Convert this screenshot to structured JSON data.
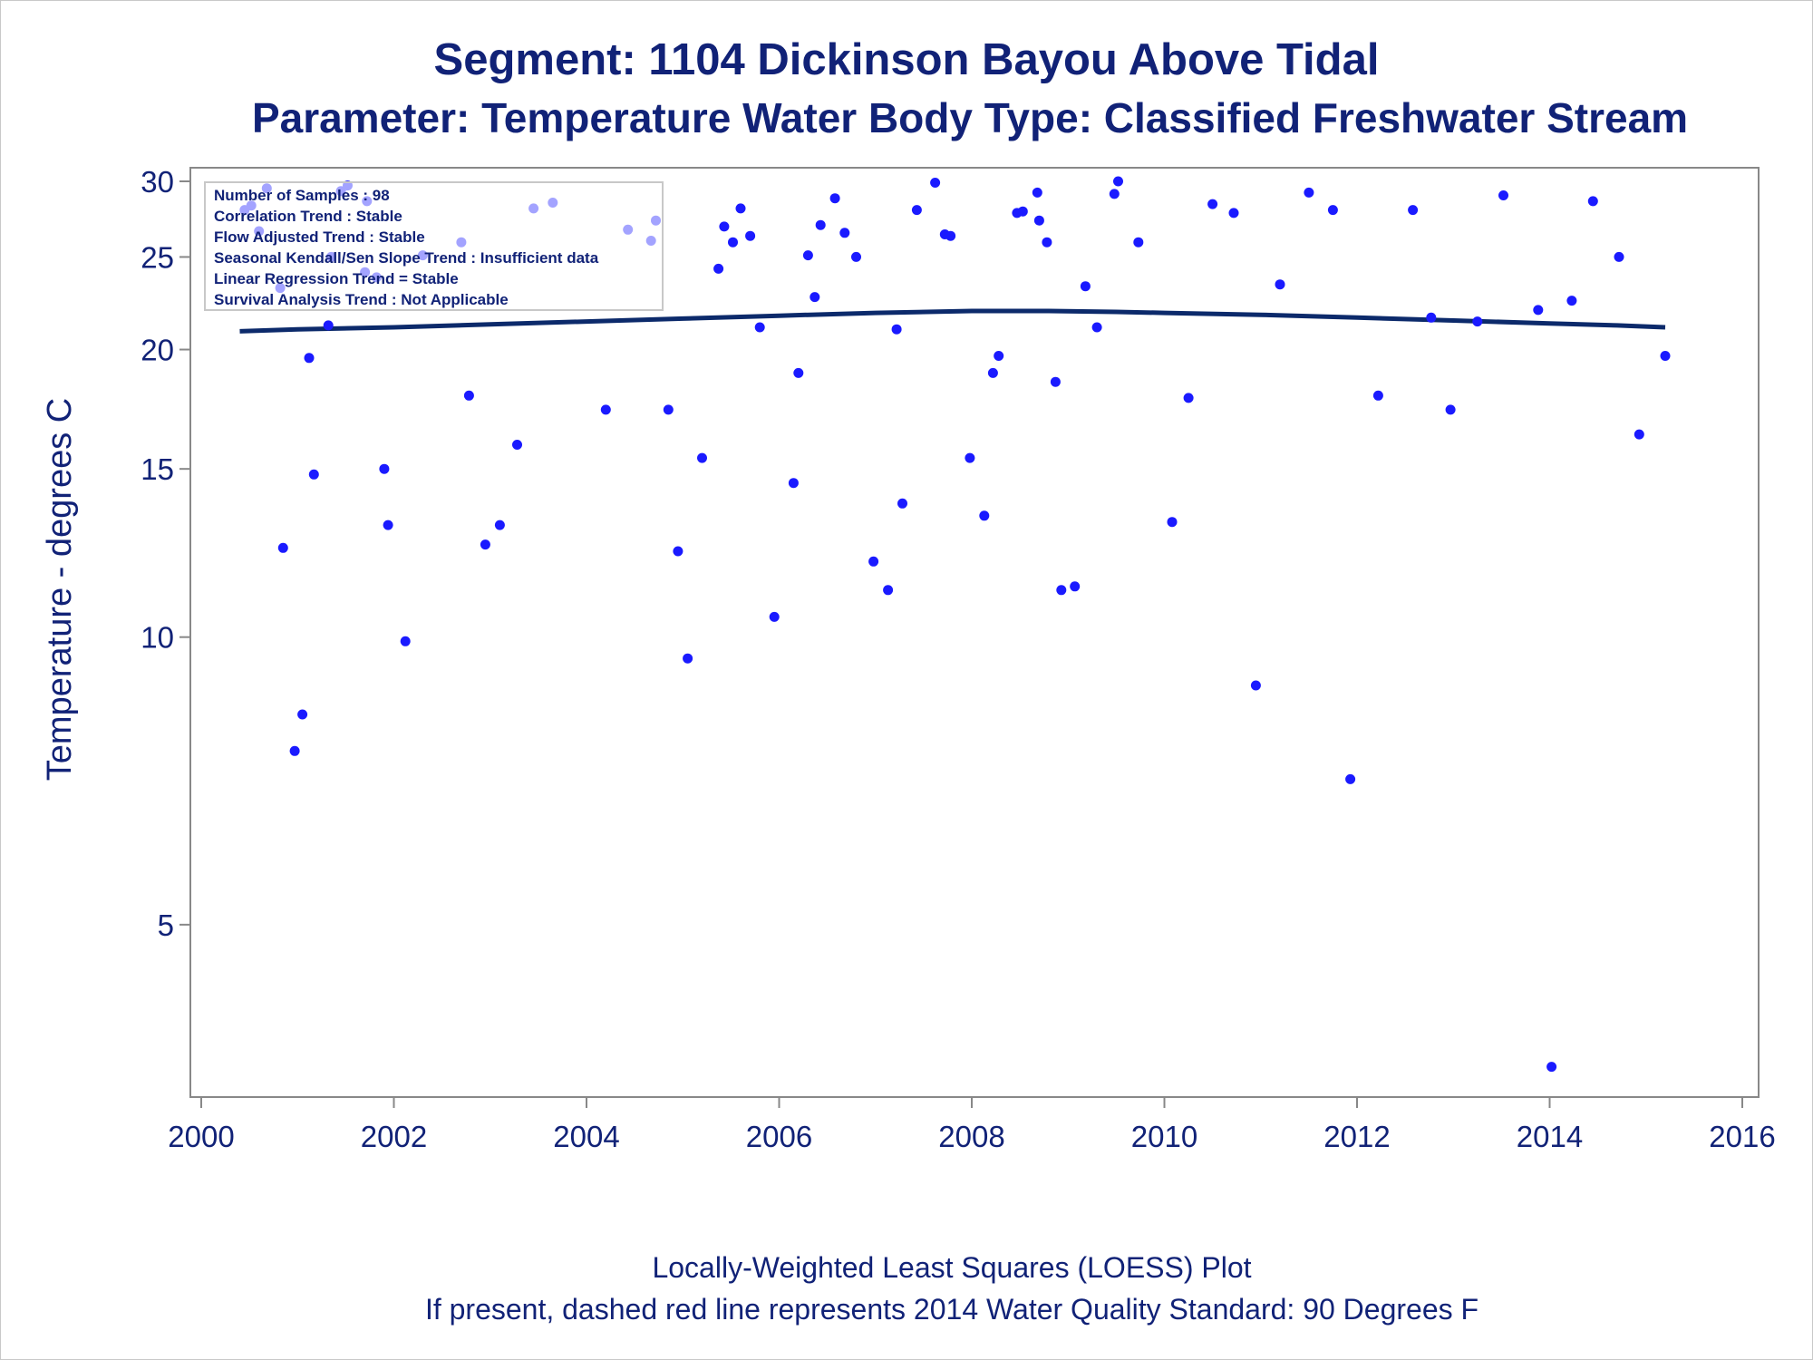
{
  "titles": {
    "line1": "Segment: 1104  Dickinson Bayou Above Tidal",
    "line2": "Parameter: Temperature   Water Body Type: Classified Freshwater Stream"
  },
  "footnotes": {
    "line1": "Locally-Weighted Least Squares (LOESS) Plot",
    "line2": "If present, dashed red line represents 2014 Water Quality Standard: 90   Degrees F"
  },
  "info_box": [
    "Number of Samples : 98",
    "Correlation Trend : Stable",
    "Flow Adjusted Trend : Stable",
    "Seasonal Kendall/Sen Slope Trend : Insufficient data",
    "Linear Regression Trend = Stable",
    "Survival Analysis Trend : Not Applicable"
  ],
  "colors": {
    "text": "#112277",
    "points": "#1a1aff",
    "loess": "#0c2a6b",
    "axis": "#888888"
  },
  "chart_data": {
    "type": "scatter",
    "xlabel": "",
    "ylabel": "Temperature - degrees C",
    "y_scale": "log",
    "xlim": [
      2000,
      2016
    ],
    "ylim": [
      3.3,
      31
    ],
    "x_ticks": [
      2000,
      2002,
      2004,
      2006,
      2008,
      2010,
      2012,
      2014,
      2016
    ],
    "y_ticks": [
      5,
      10,
      15,
      20,
      25,
      30
    ],
    "grid": false,
    "series": [
      {
        "kind": "scatter",
        "points": [
          [
            2000.45,
            28.0
          ],
          [
            2000.52,
            28.3
          ],
          [
            2000.6,
            26.6
          ],
          [
            2000.68,
            29.5
          ],
          [
            2000.82,
            23.2
          ],
          [
            2000.85,
            12.4
          ],
          [
            2000.97,
            7.6
          ],
          [
            2001.05,
            8.3
          ],
          [
            2001.12,
            19.6
          ],
          [
            2001.17,
            14.8
          ],
          [
            2001.32,
            21.2
          ],
          [
            2001.35,
            25.0
          ],
          [
            2001.45,
            29.3
          ],
          [
            2001.52,
            29.7
          ],
          [
            2001.7,
            24.1
          ],
          [
            2001.72,
            28.6
          ],
          [
            2001.82,
            23.8
          ],
          [
            2001.9,
            15.0
          ],
          [
            2001.94,
            13.1
          ],
          [
            2002.12,
            9.9
          ],
          [
            2002.3,
            25.1
          ],
          [
            2002.7,
            25.9
          ],
          [
            2002.78,
            17.9
          ],
          [
            2002.95,
            12.5
          ],
          [
            2003.1,
            13.1
          ],
          [
            2003.28,
            15.9
          ],
          [
            2003.45,
            28.1
          ],
          [
            2003.65,
            28.5
          ],
          [
            2004.2,
            17.3
          ],
          [
            2004.43,
            26.7
          ],
          [
            2004.67,
            26.0
          ],
          [
            2004.72,
            27.3
          ],
          [
            2004.85,
            17.3
          ],
          [
            2004.95,
            12.3
          ],
          [
            2005.05,
            9.5
          ],
          [
            2005.2,
            15.4
          ],
          [
            2005.37,
            24.3
          ],
          [
            2005.43,
            26.9
          ],
          [
            2005.52,
            25.9
          ],
          [
            2005.6,
            28.1
          ],
          [
            2005.7,
            26.3
          ],
          [
            2005.8,
            21.1
          ],
          [
            2005.95,
            10.5
          ],
          [
            2006.15,
            14.5
          ],
          [
            2006.2,
            18.9
          ],
          [
            2006.3,
            25.1
          ],
          [
            2006.37,
            22.7
          ],
          [
            2006.43,
            27.0
          ],
          [
            2006.58,
            28.8
          ],
          [
            2006.68,
            26.5
          ],
          [
            2006.8,
            25.0
          ],
          [
            2006.98,
            12.0
          ],
          [
            2007.13,
            11.2
          ],
          [
            2007.22,
            21.0
          ],
          [
            2007.28,
            13.8
          ],
          [
            2007.43,
            28.0
          ],
          [
            2007.62,
            29.9
          ],
          [
            2007.72,
            26.4
          ],
          [
            2007.78,
            26.3
          ],
          [
            2007.98,
            15.4
          ],
          [
            2008.13,
            13.4
          ],
          [
            2008.22,
            18.9
          ],
          [
            2008.28,
            19.7
          ],
          [
            2008.47,
            27.8
          ],
          [
            2008.53,
            27.9
          ],
          [
            2008.68,
            29.2
          ],
          [
            2008.7,
            27.3
          ],
          [
            2008.78,
            25.9
          ],
          [
            2008.87,
            18.5
          ],
          [
            2008.93,
            11.2
          ],
          [
            2009.07,
            11.3
          ],
          [
            2009.18,
            23.3
          ],
          [
            2009.3,
            21.1
          ],
          [
            2009.48,
            29.1
          ],
          [
            2009.52,
            30.0
          ],
          [
            2009.73,
            25.9
          ],
          [
            2010.08,
            13.2
          ],
          [
            2010.25,
            17.8
          ],
          [
            2010.5,
            28.4
          ],
          [
            2010.72,
            27.8
          ],
          [
            2010.95,
            8.9
          ],
          [
            2011.2,
            23.4
          ],
          [
            2011.5,
            29.2
          ],
          [
            2011.75,
            28.0
          ],
          [
            2011.93,
            7.1
          ],
          [
            2012.22,
            17.9
          ],
          [
            2012.58,
            28.0
          ],
          [
            2012.77,
            21.6
          ],
          [
            2012.97,
            17.3
          ],
          [
            2013.25,
            21.4
          ],
          [
            2013.52,
            29.0
          ],
          [
            2013.88,
            22.0
          ],
          [
            2014.02,
            3.55
          ],
          [
            2014.23,
            22.5
          ],
          [
            2014.45,
            28.6
          ],
          [
            2014.72,
            25.0
          ],
          [
            2014.93,
            16.3
          ],
          [
            2015.2,
            19.7
          ]
        ]
      },
      {
        "kind": "loess",
        "points": [
          [
            2000.4,
            20.9
          ],
          [
            2001.0,
            21.0
          ],
          [
            2002.0,
            21.1
          ],
          [
            2003.0,
            21.25
          ],
          [
            2004.0,
            21.4
          ],
          [
            2005.0,
            21.55
          ],
          [
            2006.0,
            21.7
          ],
          [
            2007.0,
            21.85
          ],
          [
            2008.0,
            21.95
          ],
          [
            2008.8,
            21.95
          ],
          [
            2009.5,
            21.9
          ],
          [
            2010.0,
            21.85
          ],
          [
            2011.0,
            21.75
          ],
          [
            2012.0,
            21.6
          ],
          [
            2013.0,
            21.45
          ],
          [
            2014.0,
            21.3
          ],
          [
            2014.7,
            21.2
          ],
          [
            2015.2,
            21.1
          ]
        ]
      }
    ]
  }
}
